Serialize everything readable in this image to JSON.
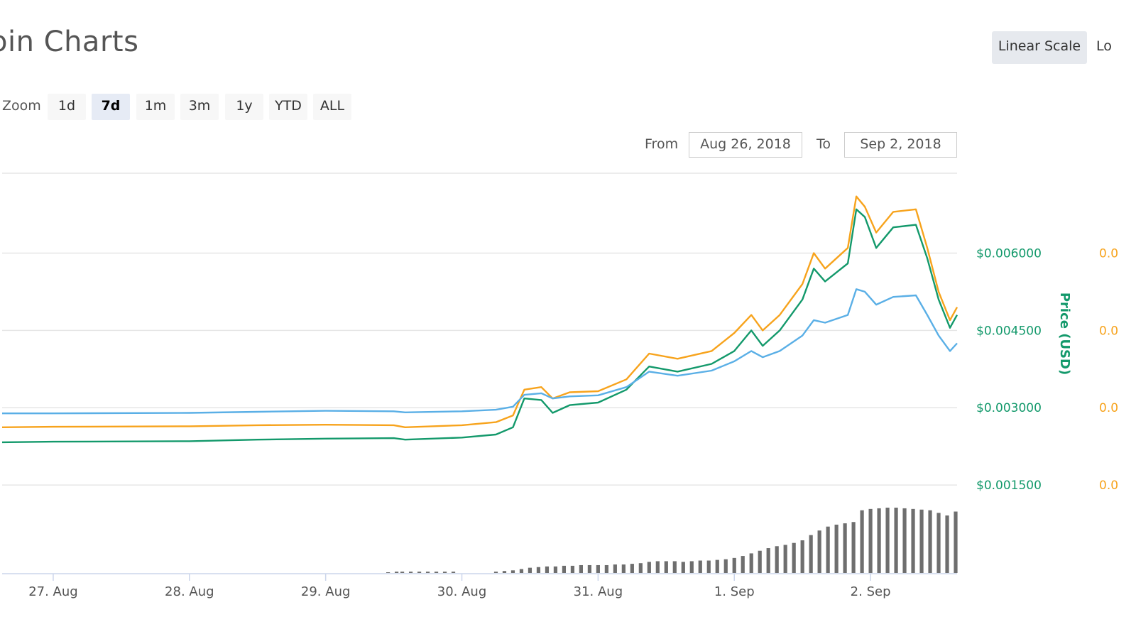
{
  "header": {
    "title": "oin Charts",
    "scale_buttons": [
      {
        "label": "Linear Scale",
        "active": true
      },
      {
        "label": "Lo",
        "active": false
      }
    ]
  },
  "zoom": {
    "label": "Zoom",
    "buttons": [
      {
        "label": "1d",
        "active": false
      },
      {
        "label": "7d",
        "active": true
      },
      {
        "label": "1m",
        "active": false
      },
      {
        "label": "3m",
        "active": false
      },
      {
        "label": "1y",
        "active": false
      },
      {
        "label": "YTD",
        "active": false
      },
      {
        "label": "ALL",
        "active": false
      }
    ]
  },
  "range": {
    "from_label": "From",
    "from_value": "Aug 26, 2018",
    "to_label": "To",
    "to_value": "Sep 2, 2018"
  },
  "colors": {
    "orange": "#f7a31c",
    "green": "#13996b",
    "blue": "#5aafe6",
    "volume": "#6e6e6e",
    "grid": "#e6e6e6"
  },
  "chart_data": {
    "type": "line",
    "x_tick_labels": [
      "27. Aug",
      "28. Aug",
      "29. Aug",
      "30. Aug",
      "31. Aug",
      "1. Sep",
      "2. Sep"
    ],
    "xlim": [
      "2018-08-26T15:00",
      "2018-09-02T15:15"
    ],
    "right_axis_green": {
      "label": "Price (USD)",
      "ticks": [
        "$0.006000",
        "$0.004500",
        "$0.003000",
        "$0.001500"
      ],
      "values": [
        0.006,
        0.0045,
        0.003,
        0.0015
      ]
    },
    "right_axis_orange": {
      "ticks": [
        "0.0",
        "0.0",
        "0.0",
        "0.0"
      ]
    },
    "ylim": [
      0.00135,
      0.00755
    ],
    "series": [
      {
        "color": "#f7a31c",
        "points": [
          [
            "2018-08-26T15:00",
            0.00262
          ],
          [
            "2018-08-27T00:00",
            0.00263
          ],
          [
            "2018-08-28T00:00",
            0.00264
          ],
          [
            "2018-08-28T12:00",
            0.00266
          ],
          [
            "2018-08-29T00:00",
            0.00267
          ],
          [
            "2018-08-29T12:00",
            0.00266
          ],
          [
            "2018-08-29T14:00",
            0.00262
          ],
          [
            "2018-08-30T00:00",
            0.00266
          ],
          [
            "2018-08-30T06:00",
            0.00272
          ],
          [
            "2018-08-30T09:00",
            0.00285
          ],
          [
            "2018-08-30T11:00",
            0.00335
          ],
          [
            "2018-08-30T14:00",
            0.0034
          ],
          [
            "2018-08-30T16:00",
            0.00318
          ],
          [
            "2018-08-30T19:00",
            0.0033
          ],
          [
            "2018-08-31T00:00",
            0.00332
          ],
          [
            "2018-08-31T05:00",
            0.00355
          ],
          [
            "2018-08-31T09:00",
            0.00405
          ],
          [
            "2018-08-31T14:00",
            0.00395
          ],
          [
            "2018-08-31T20:00",
            0.0041
          ],
          [
            "2018-09-01T00:00",
            0.00445
          ],
          [
            "2018-09-01T03:00",
            0.0048
          ],
          [
            "2018-09-01T05:00",
            0.0045
          ],
          [
            "2018-09-01T08:00",
            0.0048
          ],
          [
            "2018-09-01T12:00",
            0.0054
          ],
          [
            "2018-09-01T14:00",
            0.006
          ],
          [
            "2018-09-01T16:00",
            0.0057
          ],
          [
            "2018-09-01T20:00",
            0.0061
          ],
          [
            "2018-09-01T21:30",
            0.0071
          ],
          [
            "2018-09-01T23:00",
            0.0069
          ],
          [
            "2018-09-02T01:00",
            0.0064
          ],
          [
            "2018-09-02T04:00",
            0.0068
          ],
          [
            "2018-09-02T08:00",
            0.00685
          ],
          [
            "2018-09-02T10:00",
            0.0061
          ],
          [
            "2018-09-02T12:00",
            0.00525
          ],
          [
            "2018-09-02T14:00",
            0.0047
          ],
          [
            "2018-09-02T15:15",
            0.00495
          ]
        ]
      },
      {
        "color": "#13996b",
        "points": [
          [
            "2018-08-26T15:00",
            0.00233
          ],
          [
            "2018-08-27T00:00",
            0.00234
          ],
          [
            "2018-08-28T00:00",
            0.00235
          ],
          [
            "2018-08-28T12:00",
            0.00238
          ],
          [
            "2018-08-29T00:00",
            0.0024
          ],
          [
            "2018-08-29T12:00",
            0.00241
          ],
          [
            "2018-08-29T14:00",
            0.00238
          ],
          [
            "2018-08-30T00:00",
            0.00242
          ],
          [
            "2018-08-30T06:00",
            0.00248
          ],
          [
            "2018-08-30T09:00",
            0.00262
          ],
          [
            "2018-08-30T11:00",
            0.00318
          ],
          [
            "2018-08-30T14:00",
            0.00315
          ],
          [
            "2018-08-30T16:00",
            0.0029
          ],
          [
            "2018-08-30T19:00",
            0.00305
          ],
          [
            "2018-08-31T00:00",
            0.0031
          ],
          [
            "2018-08-31T05:00",
            0.00335
          ],
          [
            "2018-08-31T09:00",
            0.0038
          ],
          [
            "2018-08-31T14:00",
            0.0037
          ],
          [
            "2018-08-31T20:00",
            0.00385
          ],
          [
            "2018-09-01T00:00",
            0.0041
          ],
          [
            "2018-09-01T03:00",
            0.0045
          ],
          [
            "2018-09-01T05:00",
            0.0042
          ],
          [
            "2018-09-01T08:00",
            0.0045
          ],
          [
            "2018-09-01T12:00",
            0.0051
          ],
          [
            "2018-09-01T14:00",
            0.0057
          ],
          [
            "2018-09-01T16:00",
            0.00545
          ],
          [
            "2018-09-01T20:00",
            0.0058
          ],
          [
            "2018-09-01T21:30",
            0.00685
          ],
          [
            "2018-09-01T23:00",
            0.0067
          ],
          [
            "2018-09-02T01:00",
            0.0061
          ],
          [
            "2018-09-02T04:00",
            0.0065
          ],
          [
            "2018-09-02T08:00",
            0.00655
          ],
          [
            "2018-09-02T10:00",
            0.0059
          ],
          [
            "2018-09-02T12:00",
            0.0051
          ],
          [
            "2018-09-02T14:00",
            0.00455
          ],
          [
            "2018-09-02T15:15",
            0.0048
          ]
        ]
      },
      {
        "color": "#5aafe6",
        "points": [
          [
            "2018-08-26T15:00",
            0.00289
          ],
          [
            "2018-08-27T00:00",
            0.00289
          ],
          [
            "2018-08-28T00:00",
            0.0029
          ],
          [
            "2018-08-28T12:00",
            0.00292
          ],
          [
            "2018-08-29T00:00",
            0.00294
          ],
          [
            "2018-08-29T12:00",
            0.00293
          ],
          [
            "2018-08-29T14:00",
            0.00291
          ],
          [
            "2018-08-30T00:00",
            0.00293
          ],
          [
            "2018-08-30T06:00",
            0.00296
          ],
          [
            "2018-08-30T09:00",
            0.00302
          ],
          [
            "2018-08-30T11:00",
            0.00325
          ],
          [
            "2018-08-30T14:00",
            0.00328
          ],
          [
            "2018-08-30T16:00",
            0.00318
          ],
          [
            "2018-08-30T19:00",
            0.00322
          ],
          [
            "2018-08-31T00:00",
            0.00324
          ],
          [
            "2018-08-31T05:00",
            0.0034
          ],
          [
            "2018-08-31T09:00",
            0.0037
          ],
          [
            "2018-08-31T14:00",
            0.00362
          ],
          [
            "2018-08-31T20:00",
            0.00372
          ],
          [
            "2018-09-01T00:00",
            0.0039
          ],
          [
            "2018-09-01T03:00",
            0.0041
          ],
          [
            "2018-09-01T05:00",
            0.00398
          ],
          [
            "2018-09-01T08:00",
            0.0041
          ],
          [
            "2018-09-01T12:00",
            0.0044
          ],
          [
            "2018-09-01T14:00",
            0.0047
          ],
          [
            "2018-09-01T16:00",
            0.00465
          ],
          [
            "2018-09-01T20:00",
            0.0048
          ],
          [
            "2018-09-01T21:30",
            0.0053
          ],
          [
            "2018-09-01T23:00",
            0.00525
          ],
          [
            "2018-09-02T01:00",
            0.005
          ],
          [
            "2018-09-02T04:00",
            0.00515
          ],
          [
            "2018-09-02T08:00",
            0.00518
          ],
          [
            "2018-09-02T10:00",
            0.0048
          ],
          [
            "2018-09-02T12:00",
            0.0044
          ],
          [
            "2018-09-02T14:00",
            0.0041
          ],
          [
            "2018-09-02T15:15",
            0.00425
          ]
        ]
      }
    ],
    "volume_relative": [
      [
        "2018-08-29T11:00",
        0.01
      ],
      [
        "2018-08-29T12:30",
        0.02
      ],
      [
        "2018-08-29T13:30",
        0.02
      ],
      [
        "2018-08-29T15:00",
        0.02
      ],
      [
        "2018-08-29T16:30",
        0.02
      ],
      [
        "2018-08-29T18:00",
        0.02
      ],
      [
        "2018-08-29T19:30",
        0.02
      ],
      [
        "2018-08-29T21:00",
        0.02
      ],
      [
        "2018-08-29T22:30",
        0.02
      ],
      [
        "2018-08-30T06:00",
        0.02
      ],
      [
        "2018-08-30T07:30",
        0.03
      ],
      [
        "2018-08-30T09:00",
        0.04
      ],
      [
        "2018-08-30T10:30",
        0.06
      ],
      [
        "2018-08-30T12:00",
        0.08
      ],
      [
        "2018-08-30T13:30",
        0.09
      ],
      [
        "2018-08-30T15:00",
        0.1
      ],
      [
        "2018-08-30T16:30",
        0.1
      ],
      [
        "2018-08-30T18:00",
        0.11
      ],
      [
        "2018-08-30T19:30",
        0.11
      ],
      [
        "2018-08-30T21:00",
        0.12
      ],
      [
        "2018-08-30T22:30",
        0.12
      ],
      [
        "2018-08-31T00:00",
        0.12
      ],
      [
        "2018-08-31T01:30",
        0.12
      ],
      [
        "2018-08-31T03:00",
        0.13
      ],
      [
        "2018-08-31T04:30",
        0.13
      ],
      [
        "2018-08-31T06:00",
        0.14
      ],
      [
        "2018-08-31T07:30",
        0.15
      ],
      [
        "2018-08-31T09:00",
        0.17
      ],
      [
        "2018-08-31T10:30",
        0.18
      ],
      [
        "2018-08-31T12:00",
        0.18
      ],
      [
        "2018-08-31T13:30",
        0.18
      ],
      [
        "2018-08-31T15:00",
        0.17
      ],
      [
        "2018-08-31T16:30",
        0.18
      ],
      [
        "2018-08-31T18:00",
        0.19
      ],
      [
        "2018-08-31T19:30",
        0.19
      ],
      [
        "2018-08-31T21:00",
        0.2
      ],
      [
        "2018-08-31T22:30",
        0.21
      ],
      [
        "2018-09-01T00:00",
        0.23
      ],
      [
        "2018-09-01T01:30",
        0.26
      ],
      [
        "2018-09-01T03:00",
        0.3
      ],
      [
        "2018-09-01T04:30",
        0.34
      ],
      [
        "2018-09-01T06:00",
        0.38
      ],
      [
        "2018-09-01T07:30",
        0.41
      ],
      [
        "2018-09-01T09:00",
        0.43
      ],
      [
        "2018-09-01T10:30",
        0.46
      ],
      [
        "2018-09-01T12:00",
        0.5
      ],
      [
        "2018-09-01T13:30",
        0.58
      ],
      [
        "2018-09-01T15:00",
        0.65
      ],
      [
        "2018-09-01T16:30",
        0.71
      ],
      [
        "2018-09-01T18:00",
        0.74
      ],
      [
        "2018-09-01T19:30",
        0.76
      ],
      [
        "2018-09-01T21:00",
        0.78
      ],
      [
        "2018-09-01T22:30",
        0.96
      ],
      [
        "2018-09-02T00:00",
        0.98
      ],
      [
        "2018-09-02T01:30",
        0.99
      ],
      [
        "2018-09-02T03:00",
        1.0
      ],
      [
        "2018-09-02T04:30",
        1.0
      ],
      [
        "2018-09-02T06:00",
        0.99
      ],
      [
        "2018-09-02T07:30",
        0.98
      ],
      [
        "2018-09-02T09:00",
        0.97
      ],
      [
        "2018-09-02T10:30",
        0.96
      ],
      [
        "2018-09-02T12:00",
        0.92
      ],
      [
        "2018-09-02T13:30",
        0.88
      ],
      [
        "2018-09-02T15:00",
        0.94
      ]
    ]
  }
}
